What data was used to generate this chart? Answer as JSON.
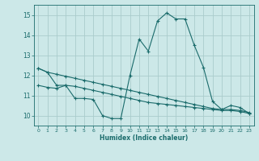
{
  "xlabel": "Humidex (Indice chaleur)",
  "ylabel": "",
  "background_color": "#cce8e8",
  "grid_color": "#aacccc",
  "line_color": "#1a6b6b",
  "xlim": [
    -0.5,
    23.5
  ],
  "ylim": [
    9.5,
    15.5
  ],
  "yticks": [
    10,
    11,
    12,
    13,
    14,
    15
  ],
  "xticks": [
    0,
    1,
    2,
    3,
    4,
    5,
    6,
    7,
    8,
    9,
    10,
    11,
    12,
    13,
    14,
    15,
    16,
    17,
    18,
    19,
    20,
    21,
    22,
    23
  ],
  "series1_x": [
    0,
    1,
    2,
    3,
    4,
    5,
    6,
    7,
    8,
    9,
    10,
    11,
    12,
    13,
    14,
    15,
    16,
    17,
    18,
    19,
    20,
    21,
    22,
    23
  ],
  "series1_y": [
    12.35,
    12.15,
    12.05,
    11.95,
    11.85,
    11.75,
    11.65,
    11.55,
    11.45,
    11.35,
    11.25,
    11.15,
    11.05,
    10.95,
    10.85,
    10.75,
    10.65,
    10.55,
    10.45,
    10.35,
    10.3,
    10.3,
    10.25,
    10.15
  ],
  "series2_x": [
    0,
    1,
    2,
    3,
    4,
    5,
    6,
    7,
    8,
    9,
    10,
    11,
    12,
    13,
    14,
    15,
    16,
    17,
    18,
    19,
    20,
    21,
    22,
    23
  ],
  "series2_y": [
    11.5,
    11.4,
    11.35,
    11.5,
    11.45,
    11.35,
    11.25,
    11.15,
    11.05,
    10.95,
    10.85,
    10.75,
    10.65,
    10.6,
    10.55,
    10.5,
    10.45,
    10.4,
    10.35,
    10.3,
    10.25,
    10.25,
    10.2,
    10.1
  ],
  "series3_x": [
    0,
    1,
    2,
    3,
    4,
    5,
    6,
    7,
    8,
    9,
    10,
    11,
    12,
    13,
    14,
    15,
    16,
    17,
    18,
    19,
    20,
    21,
    22,
    23
  ],
  "series3_y": [
    12.35,
    12.15,
    11.5,
    11.5,
    10.85,
    10.85,
    10.8,
    10.0,
    9.85,
    9.85,
    12.0,
    13.8,
    13.2,
    14.7,
    15.1,
    14.8,
    14.8,
    13.5,
    12.4,
    10.7,
    10.3,
    10.5,
    10.4,
    10.1
  ]
}
